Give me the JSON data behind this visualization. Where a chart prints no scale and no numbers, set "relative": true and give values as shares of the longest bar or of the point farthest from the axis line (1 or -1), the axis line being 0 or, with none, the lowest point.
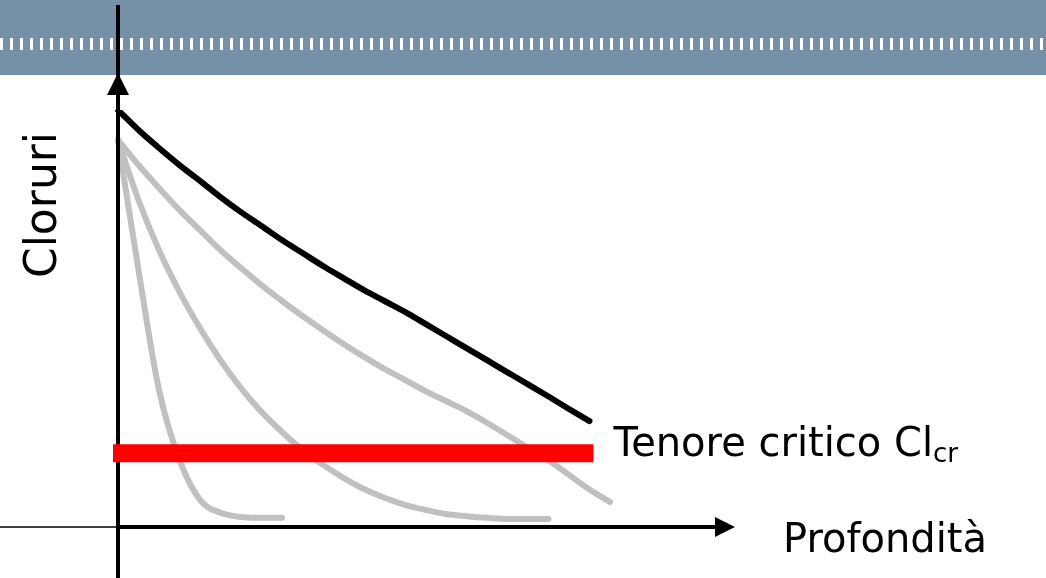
{
  "chart_data": {
    "type": "line",
    "relative": true,
    "xlabel": "Profondità",
    "ylabel": "Cloruri",
    "legend": false,
    "marker": "none",
    "line_style": "solid",
    "grid": false,
    "categories": [
      null,
      null,
      null,
      null,
      null,
      null,
      null,
      null,
      null,
      null,
      null,
      null,
      null,
      null,
      null,
      null,
      null,
      null,
      null,
      null,
      null,
      null,
      null,
      null,
      null
    ],
    "series": [
      {
        "color": "#c0c0c0",
        "values": [
          0.928,
          0.616,
          0.329,
          0.161,
          0.065,
          0.034,
          0.024,
          0.022,
          0.022,
          null,
          null,
          null,
          null,
          null,
          null,
          null,
          null,
          null,
          null,
          null,
          null,
          null,
          null,
          null,
          null
        ]
      },
      {
        "color": "#c0c0c0",
        "values": [
          0.928,
          0.784,
          0.664,
          0.564,
          0.477,
          0.4,
          0.333,
          0.276,
          0.228,
          0.185,
          0.149,
          0.118,
          0.091,
          0.07,
          0.053,
          0.041,
          0.031,
          0.026,
          0.022,
          0.019,
          0.019,
          0.019,
          null,
          null,
          null
        ]
      },
      {
        "color": "#c0c0c0",
        "values": [
          0.928,
          0.868,
          0.813,
          0.76,
          0.712,
          0.664,
          0.621,
          0.58,
          0.542,
          0.506,
          0.472,
          0.439,
          0.408,
          0.379,
          0.353,
          0.326,
          0.302,
          0.278,
          0.25,
          0.22,
          0.19,
          0.16,
          0.125,
          0.09,
          0.06
        ]
      },
      {
        "color": "#000000",
        "values": [
          1,
          0.952,
          0.909,
          0.868,
          0.83,
          0.791,
          0.755,
          0.722,
          0.688,
          0.657,
          0.626,
          0.597,
          0.568,
          0.542,
          0.516,
          0.487,
          0.458,
          0.429,
          0.4,
          0.371,
          0.342,
          0.313,
          0.283,
          0.254,
          null
        ]
      }
    ],
    "ref_lines": [
      {
        "axis": "y",
        "value": 0.177,
        "label": "Tenore critico Cl$_{cr}$",
        "color": "#ff0000"
      }
    ]
  }
}
